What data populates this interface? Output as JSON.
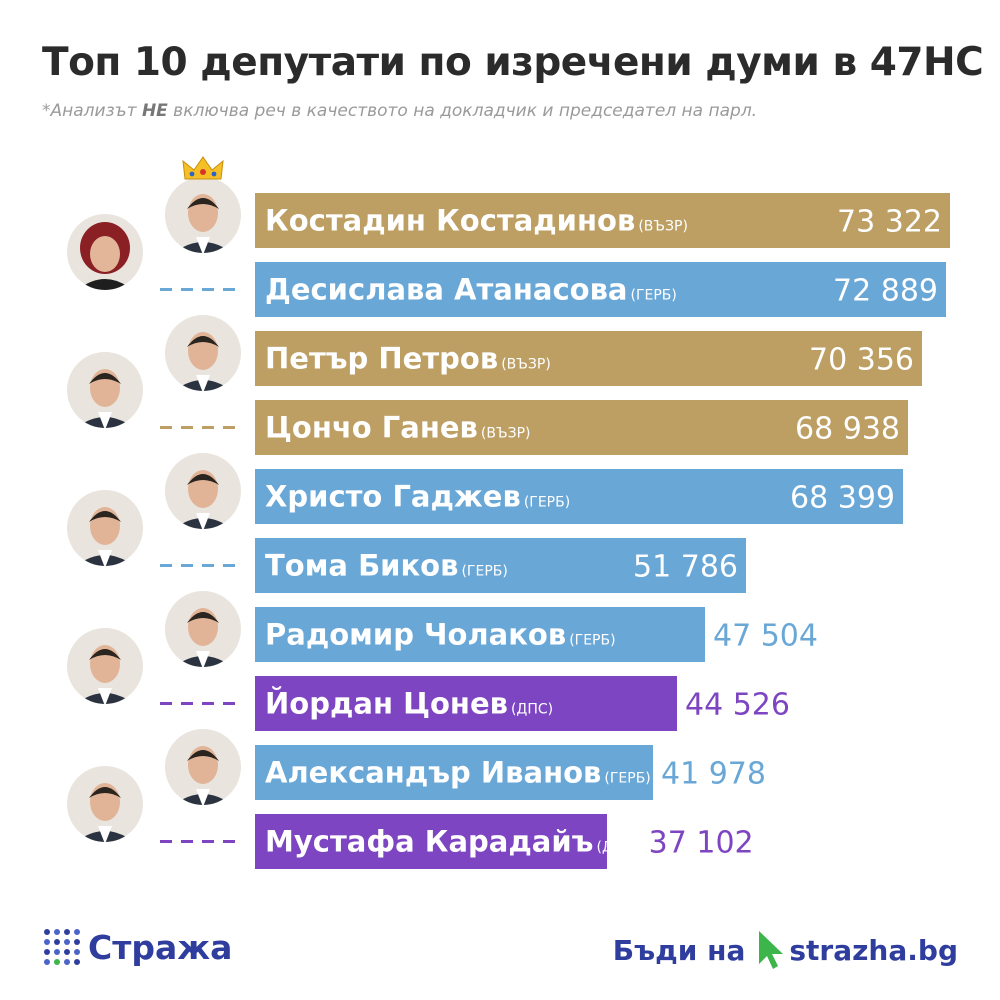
{
  "title": "Топ 10 депутати по изречени думи в 47НС",
  "subtitle": {
    "prefix": "*Анализът ",
    "emph": "НЕ",
    "suffix": " включва реч в качеството на докладчик и председател на парл."
  },
  "colors": {
    "ВЪЗР": "#bd9f63",
    "ГЕРБ": "#69a7d7",
    "ДПС": "#7d45c2",
    "brand": "#2f3e9e",
    "brand_green": "#3cb54a"
  },
  "chart_data": {
    "type": "bar",
    "orientation": "horizontal",
    "categories": [
      "Костадин Костадинов",
      "Десислава Атанасова",
      "Петър Петров",
      "Цончо Ганев",
      "Христо Гаджев",
      "Тома Биков",
      "Радомир Чолаков",
      "Йордан Цонев",
      "Александър Иванов",
      "Мустафа Карадайъ"
    ],
    "parties": [
      "(ВЪЗР)",
      "(ГЕРБ)",
      "(ВЪЗР)",
      "(ВЪЗР)",
      "(ГЕРБ)",
      "(ГЕРБ)",
      "(ГЕРБ)",
      "(ДПС)",
      "(ГЕРБ)",
      "(ДПС)"
    ],
    "party_keys": [
      "ВЪЗР",
      "ГЕРБ",
      "ВЪЗР",
      "ВЪЗР",
      "ГЕРБ",
      "ГЕРБ",
      "ГЕРБ",
      "ДПС",
      "ГЕРБ",
      "ДПС"
    ],
    "values": [
      73322,
      72889,
      70356,
      68938,
      68399,
      51786,
      47504,
      44526,
      41978,
      37102
    ],
    "value_labels": [
      "73 322",
      "72 889",
      "70 356",
      "68 938",
      "68 399",
      "51 786",
      "47 504",
      "44 526",
      "41 978",
      "37 102"
    ],
    "xlim": [
      0,
      73322
    ],
    "crown_on": "Костадин Костадинов",
    "grid": false,
    "legend": "none"
  },
  "footer": {
    "logo_text": "Стража",
    "cta_text": "Бъди на",
    "site_name": "strazha",
    "site_tld": ".bg"
  },
  "icons": [
    "crown-icon",
    "portrait-icon",
    "cursor-arrow-icon",
    "dots-grid-icon"
  ]
}
